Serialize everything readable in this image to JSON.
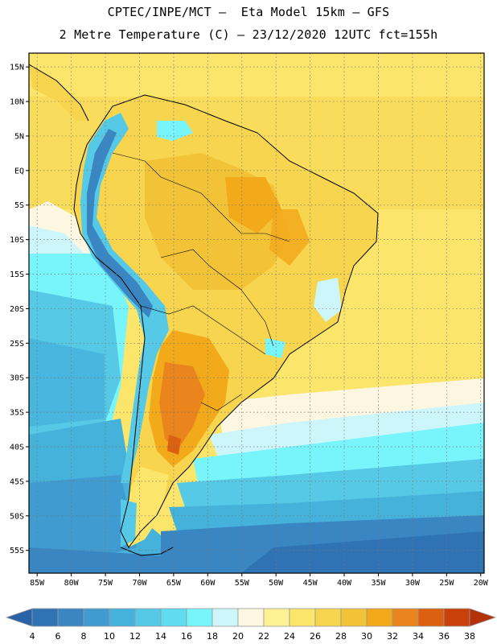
{
  "header": {
    "line1": "CPTEC/INPE/MCT –  Eta Model 15km – GFS",
    "line2": "2 Metre Temperature (C) – 23/12/2020 12UTC fct=155h"
  },
  "map": {
    "lat_ticks": [
      "15N",
      "10N",
      "5N",
      "EQ",
      "5S",
      "10S",
      "15S",
      "20S",
      "25S",
      "30S",
      "35S",
      "40S",
      "45S",
      "50S",
      "55S"
    ],
    "lon_ticks": [
      "85W",
      "80W",
      "75W",
      "70W",
      "65W",
      "60W",
      "55W",
      "50W",
      "45W",
      "40W",
      "35W",
      "30W",
      "25W",
      "20W"
    ]
  },
  "colorbar": {
    "labels": [
      "4",
      "6",
      "8",
      "10",
      "12",
      "14",
      "16",
      "18",
      "20",
      "22",
      "24",
      "26",
      "28",
      "30",
      "32",
      "34",
      "36",
      "38"
    ],
    "colors": [
      "#2a62a8",
      "#2f73b5",
      "#3a86c3",
      "#3f9bd0",
      "#45b2dc",
      "#55c9e6",
      "#5fdcf0",
      "#78f4fb",
      "#cdf6fb",
      "#fdf7e2",
      "#fdf195",
      "#fbe56a",
      "#f8d54f",
      "#f3c337",
      "#f2a91a",
      "#e9851c",
      "#dd5f10",
      "#c9400a",
      "#b33208"
    ]
  }
}
